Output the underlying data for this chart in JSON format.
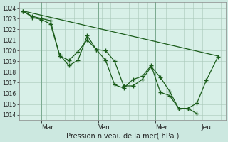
{
  "xlabel": "Pression niveau de la mer( hPa )",
  "background_color": "#cce8e0",
  "plot_bg_color": "#d8f0e8",
  "line_color": "#1a5c1a",
  "grid_color": "#a8c8b8",
  "ylim": [
    1013.5,
    1024.5
  ],
  "day_labels": [
    "Mar",
    "Ven",
    "Mer",
    "Jeu"
  ],
  "day_positions": [
    0.95,
    3.9,
    6.85,
    9.25
  ],
  "series_trend": {
    "x": [
      0.0,
      10.1
    ],
    "y": [
      1023.7,
      1019.5
    ]
  },
  "series_main": {
    "x": [
      0.0,
      0.48,
      0.95,
      1.42,
      1.9,
      2.38,
      2.85,
      3.33,
      3.8,
      4.28,
      4.75,
      5.22,
      5.7,
      6.18,
      6.65,
      7.12,
      7.6,
      8.07,
      8.55,
      9.02,
      9.5
    ],
    "y": [
      1023.7,
      1023.1,
      1022.9,
      1022.5,
      1019.6,
      1018.6,
      1019.1,
      1021.4,
      1020.1,
      1020.0,
      1019.0,
      1016.7,
      1016.7,
      1017.3,
      1018.5,
      1017.5,
      1016.2,
      1014.6,
      1014.6,
      1014.1,
      null
    ]
  },
  "series_alt": {
    "x": [
      0.0,
      0.48,
      0.95,
      1.42,
      1.9,
      2.38,
      2.85,
      3.33,
      3.8,
      4.28,
      4.75,
      5.22,
      5.7,
      6.18,
      6.65,
      7.12,
      7.6,
      8.07,
      8.55,
      9.02,
      9.5,
      10.1
    ],
    "y": [
      1023.7,
      1023.2,
      1023.0,
      1022.8,
      1019.5,
      1019.1,
      1019.9,
      1021.0,
      1020.1,
      1019.1,
      1016.8,
      1016.5,
      1017.3,
      1017.6,
      1018.6,
      1016.1,
      1015.8,
      1014.6,
      1014.6,
      1015.1,
      1017.2,
      1019.4
    ]
  },
  "tick_values": [
    1014,
    1015,
    1016,
    1017,
    1018,
    1019,
    1020,
    1021,
    1022,
    1023,
    1024
  ],
  "figsize": [
    3.2,
    2.0
  ],
  "dpi": 100
}
